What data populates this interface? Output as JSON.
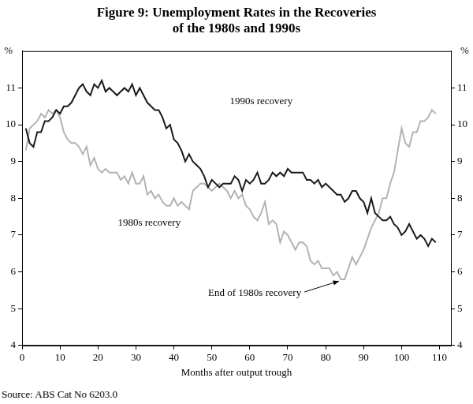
{
  "chart_data": {
    "type": "line",
    "title": [
      "Figure 9: Unemployment Rates in the Recoveries",
      "of the 1980s and 1990s"
    ],
    "xlabel": "Months after output trough",
    "ylabel": "%",
    "y2label": "%",
    "source": "Source: ABS Cat No 6203.0",
    "xlim": [
      0,
      113
    ],
    "xticks": [
      0,
      10,
      20,
      30,
      40,
      50,
      60,
      70,
      80,
      90,
      100,
      110
    ],
    "ylim": [
      4,
      12
    ],
    "yticks": [
      4,
      5,
      6,
      7,
      8,
      9,
      10,
      11
    ],
    "y2lim": [
      4,
      12
    ],
    "y2ticks": [
      4,
      5,
      6,
      7,
      8,
      9,
      10,
      11
    ],
    "grid": false,
    "x": [
      1,
      2,
      3,
      4,
      5,
      6,
      7,
      8,
      9,
      10,
      11,
      12,
      13,
      14,
      15,
      16,
      17,
      18,
      19,
      20,
      21,
      22,
      23,
      24,
      25,
      26,
      27,
      28,
      29,
      30,
      31,
      32,
      33,
      34,
      35,
      36,
      37,
      38,
      39,
      40,
      41,
      42,
      43,
      44,
      45,
      46,
      47,
      48,
      49,
      50,
      51,
      52,
      53,
      54,
      55,
      56,
      57,
      58,
      59,
      60,
      61,
      62,
      63,
      64,
      65,
      66,
      67,
      68,
      69,
      70,
      71,
      72,
      73,
      74,
      75,
      76,
      77,
      78,
      79,
      80,
      81,
      82,
      83,
      84,
      85,
      86,
      87,
      88,
      89,
      90,
      91,
      92,
      93,
      94,
      95,
      96,
      97,
      98,
      99,
      100,
      101,
      102,
      103,
      104,
      105,
      106,
      107,
      108,
      109
    ],
    "series": [
      {
        "name": "1990s recovery",
        "color": "#1a1a1a",
        "values": [
          9.9,
          9.5,
          9.4,
          9.8,
          9.8,
          10.1,
          10.1,
          10.2,
          10.4,
          10.3,
          10.5,
          10.5,
          10.6,
          10.8,
          11.0,
          11.1,
          10.9,
          10.8,
          11.1,
          11.0,
          11.2,
          10.9,
          11.0,
          10.9,
          10.8,
          10.9,
          11.0,
          10.9,
          11.1,
          10.8,
          11.0,
          10.8,
          10.6,
          10.5,
          10.4,
          10.4,
          10.2,
          9.9,
          10.0,
          9.6,
          9.5,
          9.3,
          9.0,
          9.2,
          9.0,
          8.9,
          8.8,
          8.6,
          8.3,
          8.5,
          8.4,
          8.3,
          8.4,
          8.4,
          8.4,
          8.6,
          8.5,
          8.2,
          8.5,
          8.4,
          8.5,
          8.7,
          8.4,
          8.4,
          8.5,
          8.7,
          8.6,
          8.7,
          8.6,
          8.8,
          8.7,
          8.7,
          8.7,
          8.7,
          8.5,
          8.5,
          8.4,
          8.5,
          8.3,
          8.4,
          8.3,
          8.2,
          8.1,
          8.1,
          7.9,
          8.0,
          8.2,
          8.2,
          8.0,
          7.9,
          7.6,
          8.0,
          7.6,
          7.5,
          7.4,
          7.4,
          7.5,
          7.3,
          7.2,
          7.0,
          7.1,
          7.3,
          7.1,
          6.9,
          7.0,
          6.9,
          6.7,
          6.9,
          6.8
        ]
      },
      {
        "name": "1980s recovery",
        "color": "#b3b3b3",
        "values": [
          9.3,
          9.9,
          10.0,
          10.1,
          10.3,
          10.2,
          10.4,
          10.3,
          10.4,
          10.2,
          9.8,
          9.6,
          9.5,
          9.5,
          9.4,
          9.2,
          9.4,
          8.9,
          9.1,
          8.8,
          8.7,
          8.8,
          8.7,
          8.7,
          8.7,
          8.5,
          8.6,
          8.4,
          8.7,
          8.4,
          8.4,
          8.6,
          8.1,
          8.2,
          8.0,
          8.1,
          7.9,
          7.8,
          7.8,
          8.0,
          7.8,
          7.9,
          7.8,
          7.7,
          8.2,
          8.3,
          8.4,
          8.4,
          8.3,
          8.2,
          8.3,
          8.4,
          8.3,
          8.2,
          8.0,
          8.2,
          8.0,
          8.1,
          7.8,
          7.7,
          7.5,
          7.4,
          7.6,
          7.9,
          7.3,
          7.4,
          7.3,
          6.8,
          7.1,
          7.0,
          6.8,
          6.6,
          6.8,
          6.8,
          6.7,
          6.3,
          6.2,
          6.3,
          6.1,
          6.1,
          6.1,
          5.9,
          6.0,
          5.8,
          5.8,
          6.1,
          6.4,
          6.2,
          6.4,
          6.6,
          6.9,
          7.2,
          7.4,
          7.6,
          8.0,
          8.0,
          8.4,
          8.7,
          9.3,
          9.9,
          9.5,
          9.4,
          9.8,
          9.8,
          10.1,
          10.1,
          10.2,
          10.4,
          10.3
        ]
      }
    ],
    "annotations": [
      {
        "text": "1990s recovery",
        "x": 63,
        "y": 10.64
      },
      {
        "text": "1980s recovery",
        "x": 33.5,
        "y": 7.33
      },
      {
        "text": "End of 1980s recovery",
        "x": 61.3,
        "y": 5.41,
        "arrow_to": [
          83.5,
          5.75
        ]
      }
    ]
  }
}
